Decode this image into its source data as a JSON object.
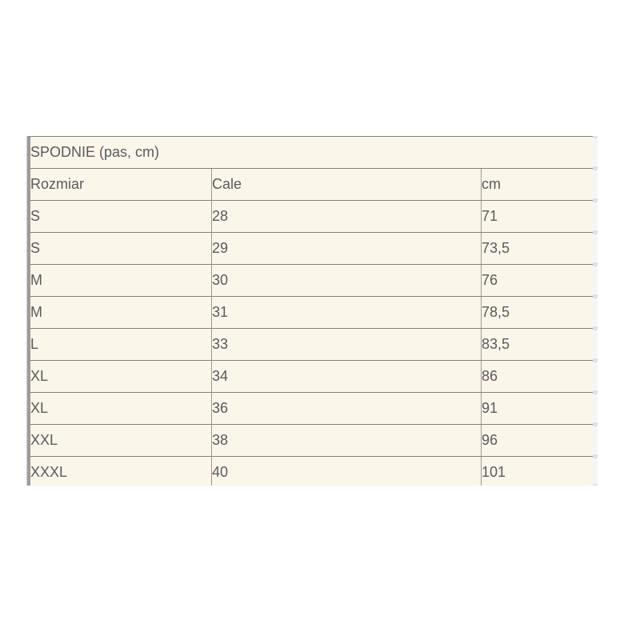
{
  "window": {
    "background": "#ffffff"
  },
  "size_table": {
    "title": "SPODNIE (pas, cm)",
    "columns": [
      "Rozmiar",
      "Cale",
      "cm"
    ],
    "rows": [
      {
        "rozmiar": "S",
        "cale": "28",
        "cm": "71"
      },
      {
        "rozmiar": "S",
        "cale": "29",
        "cm": "73,5"
      },
      {
        "rozmiar": "M",
        "cale": "30",
        "cm": "76"
      },
      {
        "rozmiar": "M",
        "cale": "31",
        "cm": "78,5"
      },
      {
        "rozmiar": "L",
        "cale": "33",
        "cm": "83,5"
      },
      {
        "rozmiar": "XL",
        "cale": "34",
        "cm": "86"
      },
      {
        "rozmiar": "XL",
        "cale": "36",
        "cm": "91"
      },
      {
        "rozmiar": "XXL",
        "cale": "38",
        "cm": "96"
      },
      {
        "rozmiar": "XXXL",
        "cale": "40",
        "cm": "101"
      }
    ],
    "colors": {
      "table_background": "#faf6ea",
      "row_border": "#83817b",
      "column_border": "#9b988f",
      "text": "#595a5d",
      "scrollbar_thumb": "#9c9c9c",
      "scrollbar_track": "#f5f5f6",
      "gutter_tick": "#e2e2e5"
    }
  }
}
